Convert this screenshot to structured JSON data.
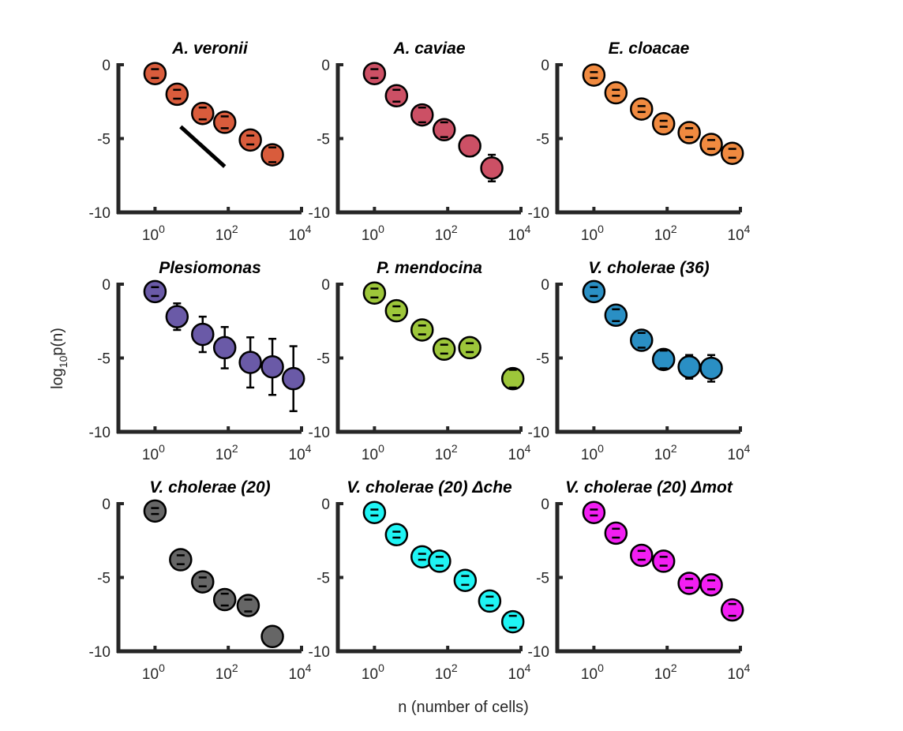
{
  "figure": {
    "xlabel": "n (number of cells)",
    "ylabel": "log10p(n)",
    "ylabel_main": "log",
    "ylabel_sub": "10",
    "ylabel_tail": "p(n)"
  },
  "chart_data": [
    {
      "type": "scatter",
      "title": "A. veronii",
      "color": "#d95c3c",
      "x": [
        1,
        4,
        20,
        80,
        400,
        1600
      ],
      "y": [
        -0.6,
        -2.0,
        -3.3,
        -3.9,
        -5.1,
        -6.1
      ],
      "err": [
        0.3,
        0.3,
        0.4,
        0.4,
        0.3,
        0.5
      ],
      "line": {
        "x": [
          5,
          80
        ],
        "y": [
          -4.2,
          -6.9
        ]
      },
      "xlim": [
        0.1,
        10000
      ],
      "ylim": [
        -10,
        0
      ],
      "xticks": [
        1,
        100,
        10000
      ],
      "yticks": [
        0,
        -5,
        -10
      ],
      "xtick_labels": [
        "0",
        "2",
        "4"
      ],
      "ytick_labels": [
        "0",
        "-5",
        "-10"
      ]
    },
    {
      "type": "scatter",
      "title": "A. caviae",
      "color": "#cc5065",
      "x": [
        1,
        4,
        20,
        80,
        400,
        1600
      ],
      "y": [
        -0.6,
        -2.1,
        -3.4,
        -4.4,
        -5.5,
        -7.0
      ],
      "err": [
        0.3,
        0.4,
        0.5,
        0.5,
        0.7,
        0.9
      ],
      "xlim": [
        0.1,
        10000
      ],
      "ylim": [
        -10,
        0
      ],
      "xticks": [
        1,
        100,
        10000
      ],
      "yticks": [
        0,
        -5,
        -10
      ],
      "xtick_labels": [
        "0",
        "2",
        "4"
      ],
      "ytick_labels": [
        "0",
        "-5",
        "-10"
      ]
    },
    {
      "type": "scatter",
      "title": "E. cloacae",
      "color": "#f08a40",
      "x": [
        1,
        4,
        20,
        80,
        400,
        1600,
        6000
      ],
      "y": [
        -0.7,
        -1.9,
        -3.0,
        -4.0,
        -4.6,
        -5.4,
        -6.0
      ],
      "err": [
        0.2,
        0.2,
        0.2,
        0.2,
        0.3,
        0.3,
        0.3
      ],
      "xlim": [
        0.1,
        10000
      ],
      "ylim": [
        -10,
        0
      ],
      "xticks": [
        1,
        100,
        10000
      ],
      "yticks": [
        0,
        -5,
        -10
      ],
      "xtick_labels": [
        "0",
        "2",
        "4"
      ],
      "ytick_labels": [
        "0",
        "-5",
        "-10"
      ]
    },
    {
      "type": "scatter",
      "title": "Plesiomonas",
      "color": "#6a5aa7",
      "x": [
        1,
        4,
        20,
        80,
        400,
        1600,
        6000
      ],
      "y": [
        -0.5,
        -2.2,
        -3.4,
        -4.3,
        -5.3,
        -5.6,
        -6.4
      ],
      "err": [
        0.3,
        0.9,
        1.2,
        1.4,
        1.7,
        1.9,
        2.2
      ],
      "xlim": [
        0.1,
        10000
      ],
      "ylim": [
        -10,
        0
      ],
      "xticks": [
        1,
        100,
        10000
      ],
      "yticks": [
        0,
        -5,
        -10
      ],
      "xtick_labels": [
        "0",
        "2",
        "4"
      ],
      "ytick_labels": [
        "0",
        "-5",
        "-10"
      ]
    },
    {
      "type": "scatter",
      "title": "P. mendocina",
      "color": "#9dc63a",
      "x": [
        1,
        4,
        20,
        80,
        400,
        6000
      ],
      "y": [
        -0.6,
        -1.8,
        -3.1,
        -4.4,
        -4.3,
        -6.4
      ],
      "err": [
        0.3,
        0.3,
        0.3,
        0.3,
        0.3,
        0.6
      ],
      "xlim": [
        0.1,
        10000
      ],
      "ylim": [
        -10,
        0
      ],
      "xticks": [
        1,
        100,
        10000
      ],
      "yticks": [
        0,
        -5,
        -10
      ],
      "xtick_labels": [
        "0",
        "2",
        "4"
      ],
      "ytick_labels": [
        "0",
        "-5",
        "-10"
      ]
    },
    {
      "type": "scatter",
      "title": "V. cholerae (36)",
      "color": "#2a8fc4",
      "x": [
        1,
        4,
        20,
        80,
        400,
        1600
      ],
      "y": [
        -0.5,
        -2.1,
        -3.8,
        -5.1,
        -5.6,
        -5.7
      ],
      "err": [
        0.3,
        0.4,
        0.5,
        0.6,
        0.8,
        0.9
      ],
      "xlim": [
        0.1,
        10000
      ],
      "ylim": [
        -10,
        0
      ],
      "xticks": [
        1,
        100,
        10000
      ],
      "yticks": [
        0,
        -5,
        -10
      ],
      "xtick_labels": [
        "0",
        "2",
        "4"
      ],
      "ytick_labels": [
        "0",
        "-5",
        "-10"
      ]
    },
    {
      "type": "scatter",
      "title": "V. cholerae (20)",
      "color": "#666666",
      "x": [
        1,
        5,
        20,
        80,
        350,
        1600
      ],
      "y": [
        -0.5,
        -3.8,
        -5.3,
        -6.5,
        -6.9,
        -9.0
      ],
      "err": [
        0.2,
        0.3,
        0.3,
        0.4,
        0.4,
        0.0
      ],
      "xlim": [
        0.1,
        10000
      ],
      "ylim": [
        -10,
        0
      ],
      "xticks": [
        1,
        100,
        10000
      ],
      "yticks": [
        0,
        -5,
        -10
      ],
      "xtick_labels": [
        "0",
        "2",
        "4"
      ],
      "ytick_labels": [
        "0",
        "-5",
        "-10"
      ]
    },
    {
      "type": "scatter",
      "title": "V. cholerae (20) Δche",
      "color": "#1ff4f4",
      "x": [
        1,
        4,
        20,
        60,
        300,
        1400,
        6000
      ],
      "y": [
        -0.6,
        -2.1,
        -3.6,
        -3.9,
        -5.2,
        -6.6,
        -8.0
      ],
      "err": [
        0.2,
        0.2,
        0.2,
        0.3,
        0.3,
        0.3,
        0.4
      ],
      "xlim": [
        0.1,
        10000
      ],
      "ylim": [
        -10,
        0
      ],
      "xticks": [
        1,
        100,
        10000
      ],
      "yticks": [
        0,
        -5,
        -10
      ],
      "xtick_labels": [
        "0",
        "2",
        "4"
      ],
      "ytick_labels": [
        "0",
        "-5",
        "-10"
      ]
    },
    {
      "type": "scatter",
      "title": "V. cholerae (20) Δmot",
      "color": "#f21ef2",
      "x": [
        1,
        4,
        20,
        80,
        400,
        1600,
        6000
      ],
      "y": [
        -0.6,
        -2.0,
        -3.5,
        -3.9,
        -5.4,
        -5.5,
        -7.2
      ],
      "err": [
        0.2,
        0.3,
        0.3,
        0.3,
        0.3,
        0.3,
        0.4
      ],
      "xlim": [
        0.1,
        10000
      ],
      "ylim": [
        -10,
        0
      ],
      "xticks": [
        1,
        100,
        10000
      ],
      "yticks": [
        0,
        -5,
        -10
      ],
      "xtick_labels": [
        "0",
        "2",
        "4"
      ],
      "ytick_labels": [
        "0",
        "-5",
        "-10"
      ]
    }
  ]
}
